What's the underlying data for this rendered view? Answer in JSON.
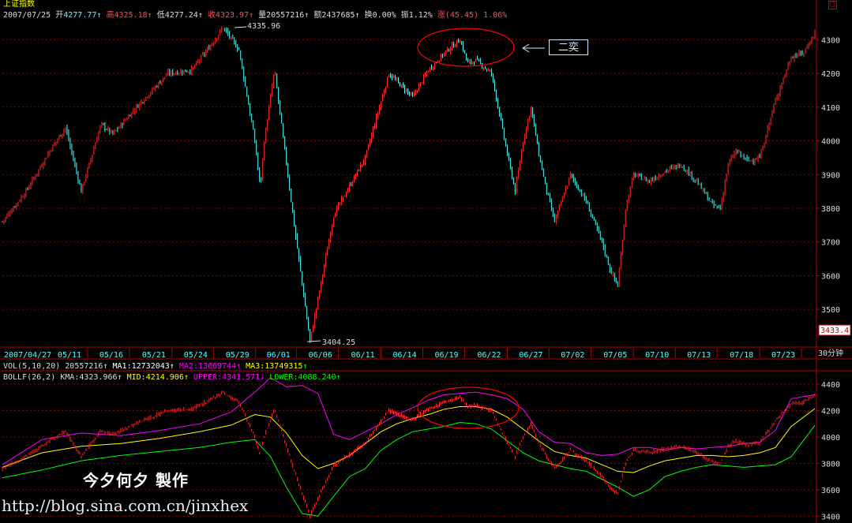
{
  "header": {
    "title": "上证指数",
    "date": "2007/07/25",
    "open_label": "开",
    "open": "4277.77",
    "high_label": "高",
    "high": "4325.18",
    "low_label": "低",
    "low": "4277.24",
    "close_label": "收",
    "close": "4323.97",
    "volume_label": "量",
    "volume": "20557216",
    "amount_label": "额",
    "amount": "2437685",
    "turnover_label": "换",
    "turnover": "0.00%",
    "amplitude_label": "振",
    "amplitude": "1.12%",
    "change_label": "涨",
    "change": "(45.45)",
    "change_pct": "1.06%"
  },
  "window_controls": {
    "restore": "□"
  },
  "annotations": {
    "peak_label": "4335.96",
    "trough_label": "3404.25",
    "callout_text": "二奕",
    "credit_text": "今夕何夕   製作",
    "url_text": "http://blog.sina.com.cn/jinxhex"
  },
  "last_price_tag": "3433.4",
  "period_label": "30分钟",
  "volume_line": {
    "name": "VOL(5,10,20)",
    "value": "20557216",
    "ma1_label": "MA1:",
    "ma1": "12732043",
    "ma2_label": "MA2:",
    "ma2": "13669744",
    "ma3_label": "MA3:",
    "ma3": "13749315"
  },
  "boll_line": {
    "name": "BOLLF(26,2)",
    "kma_label": "KMA:",
    "kma": "4323.966",
    "mid_label": "MID:",
    "mid": "4214.906",
    "upper_label": "UPPER:",
    "upper": "4341.571",
    "lower_label": "LOWER:",
    "lower": "4088.240"
  },
  "colors": {
    "up": "#ff3030",
    "down": "#54ffff",
    "grid": "#8b0000",
    "upper_band": "#ff00ff",
    "mid_band": "#ffff00",
    "lower_band": "#00ff00",
    "axis": "#b00000",
    "ellipse": "#ff0000"
  },
  "chart_data": [
    {
      "type": "candlestick",
      "title": "上证指数",
      "x_ticks": [
        "2007/04/27",
        "05/11",
        "05/16",
        "05/21",
        "05/24",
        "05/29",
        "06/01",
        "06/06",
        "06/11",
        "06/14",
        "06/19",
        "06/22",
        "06/27",
        "07/02",
        "07/05",
        "07/10",
        "07/13",
        "07/18",
        "07/23"
      ],
      "y_ticks": [
        3500,
        3600,
        3700,
        3800,
        3900,
        4000,
        4100,
        4200,
        4300
      ],
      "ylim": [
        3395,
        4350
      ],
      "price_path_index": [
        0,
        30,
        60,
        80,
        100,
        125,
        140,
        170,
        210,
        240,
        260,
        280,
        300,
        320,
        327,
        332,
        345,
        370,
        390,
        420,
        460,
        490,
        520,
        540,
        560,
        580,
        590,
        600,
        620,
        640,
        650,
        660,
        670,
        680,
        690,
        700,
        720,
        740,
        760,
        770,
        780,
        790,
        800,
        820,
        840,
        860,
        880,
        900,
        910,
        920,
        930,
        945,
        960,
        980,
        1000,
        1015,
        1030
      ],
      "price_path_value": [
        3760,
        3850,
        3970,
        4040,
        3850,
        4050,
        4020,
        4100,
        4200,
        4210,
        4270,
        4336,
        4270,
        4000,
        3860,
        4000,
        4210,
        3750,
        3404,
        3780,
        3950,
        4200,
        4130,
        4210,
        4260,
        4300,
        4230,
        4240,
        4200,
        3960,
        3850,
        4000,
        4100,
        3960,
        3850,
        3760,
        3900,
        3820,
        3700,
        3620,
        3570,
        3800,
        3900,
        3880,
        3910,
        3930,
        3880,
        3810,
        3800,
        3930,
        3970,
        3940,
        3950,
        4120,
        4250,
        4260,
        4320
      ]
    },
    {
      "type": "line",
      "title": "BOLLF(26,2)",
      "y_ticks": [
        3400,
        3600,
        3800,
        4000,
        4200,
        4400
      ],
      "ylim": [
        3390,
        4430
      ],
      "series": [
        {
          "name": "UPPER",
          "x": [
            0,
            50,
            100,
            150,
            200,
            250,
            290,
            320,
            340,
            360,
            380,
            400,
            420,
            440,
            460,
            480,
            500,
            520,
            540,
            560,
            580,
            600,
            620,
            640,
            660,
            680,
            700,
            720,
            740,
            760,
            780,
            800,
            820,
            840,
            860,
            880,
            900,
            920,
            940,
            960,
            980,
            1000,
            1030
          ],
          "y": [
            3790,
            3980,
            4030,
            4010,
            4050,
            4100,
            4190,
            4340,
            4450,
            4380,
            4390,
            4330,
            4020,
            3980,
            4040,
            4100,
            4170,
            4220,
            4280,
            4320,
            4330,
            4340,
            4320,
            4290,
            4210,
            4040,
            3960,
            3950,
            3880,
            3860,
            3870,
            3920,
            3920,
            3900,
            3920,
            3910,
            3920,
            3930,
            3950,
            3960,
            4050,
            4290,
            4320
          ]
        },
        {
          "name": "MID",
          "x": [
            0,
            50,
            100,
            150,
            200,
            250,
            290,
            320,
            340,
            360,
            380,
            400,
            420,
            440,
            460,
            480,
            500,
            520,
            540,
            560,
            580,
            600,
            620,
            640,
            660,
            680,
            700,
            720,
            740,
            760,
            780,
            800,
            820,
            840,
            860,
            880,
            900,
            920,
            940,
            960,
            980,
            1000,
            1030
          ],
          "y": [
            3770,
            3880,
            3930,
            3950,
            3990,
            4040,
            4090,
            4170,
            4150,
            4030,
            3860,
            3760,
            3800,
            3860,
            3950,
            4040,
            4100,
            4140,
            4170,
            4210,
            4230,
            4230,
            4210,
            4150,
            4060,
            3970,
            3890,
            3860,
            3840,
            3790,
            3740,
            3730,
            3780,
            3820,
            3840,
            3860,
            3860,
            3850,
            3860,
            3880,
            3920,
            4080,
            4215
          ]
        },
        {
          "name": "LOWER",
          "x": [
            0,
            50,
            100,
            150,
            200,
            250,
            290,
            320,
            340,
            360,
            380,
            400,
            420,
            440,
            460,
            480,
            500,
            520,
            540,
            560,
            580,
            600,
            620,
            640,
            660,
            680,
            700,
            720,
            740,
            760,
            780,
            800,
            820,
            840,
            860,
            880,
            900,
            920,
            940,
            960,
            980,
            1000,
            1030
          ],
          "y": [
            3690,
            3750,
            3820,
            3860,
            3890,
            3920,
            3960,
            3980,
            3850,
            3620,
            3420,
            3400,
            3550,
            3700,
            3760,
            3900,
            3980,
            4040,
            4060,
            4080,
            4110,
            4100,
            4060,
            3970,
            3880,
            3820,
            3790,
            3760,
            3740,
            3680,
            3620,
            3550,
            3600,
            3700,
            3740,
            3770,
            3790,
            3780,
            3770,
            3780,
            3790,
            3850,
            4088
          ]
        },
        {
          "name": "KMA",
          "x": [
            0,
            30,
            60,
            80,
            100,
            125,
            140,
            170,
            210,
            240,
            260,
            280,
            300,
            320,
            327,
            332,
            345,
            370,
            390,
            420,
            460,
            490,
            520,
            540,
            560,
            580,
            590,
            600,
            620,
            640,
            650,
            660,
            670,
            680,
            690,
            700,
            720,
            740,
            760,
            770,
            780,
            790,
            800,
            820,
            840,
            860,
            880,
            900,
            910,
            920,
            930,
            945,
            960,
            980,
            1000,
            1015,
            1030
          ],
          "y": [
            3760,
            3850,
            3970,
            4040,
            3850,
            4050,
            4020,
            4100,
            4200,
            4210,
            4270,
            4336,
            4270,
            4000,
            3860,
            4000,
            4210,
            3750,
            3404,
            3780,
            3950,
            4200,
            4130,
            4210,
            4260,
            4300,
            4230,
            4240,
            4200,
            3960,
            3850,
            4000,
            4100,
            3960,
            3850,
            3760,
            3900,
            3820,
            3700,
            3620,
            3570,
            3800,
            3900,
            3880,
            3910,
            3930,
            3880,
            3810,
            3800,
            3930,
            3970,
            3940,
            3950,
            4120,
            4250,
            4260,
            4320
          ]
        }
      ]
    }
  ]
}
